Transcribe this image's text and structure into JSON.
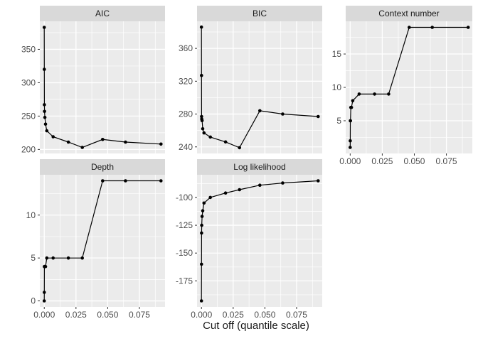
{
  "figure": {
    "xlabel": "Cut off (quantile scale)",
    "background": "#FFFFFF",
    "panel_background": "#EBEBEB",
    "strip_background": "#D9D9D9",
    "gridline_color": "#FFFFFF",
    "line_color": "#000000",
    "point_color": "#000000",
    "tick_mark_color": "#333333",
    "tick_label_color": "#4D4D4D",
    "title_text_color": "#1A1A1A"
  },
  "chart_data": [
    {
      "type": "line",
      "title": "AIC",
      "xlabel": "Cut off (quantile scale)",
      "ylabel": "",
      "x": [
        0,
        5e-05,
        0.0001,
        0.0002,
        0.0005,
        0.001,
        0.002,
        0.007,
        0.019,
        0.03,
        0.046,
        0.064,
        0.092
      ],
      "values": [
        383,
        320,
        267,
        257,
        248,
        238,
        228,
        219,
        211,
        203,
        215,
        211,
        208
      ],
      "xlim": [
        -0.0035,
        0.0952
      ],
      "ylim": [
        194,
        392
      ],
      "xticks": [
        0,
        0.025,
        0.05,
        0.075
      ],
      "xtick_labels": [
        "0.000",
        "0.025",
        "0.050",
        "0.075"
      ],
      "yticks": [
        200,
        250,
        300,
        350
      ],
      "show_x_axis": false,
      "grid": "major+minor",
      "legend": "none"
    },
    {
      "type": "line",
      "title": "BIC",
      "xlabel": "Cut off (quantile scale)",
      "ylabel": "",
      "x": [
        0,
        5e-05,
        0.0001,
        0.0002,
        0.0005,
        0.001,
        0.002,
        0.007,
        0.019,
        0.03,
        0.046,
        0.064,
        0.092
      ],
      "values": [
        386,
        327,
        277,
        274,
        272,
        262,
        257,
        252,
        246,
        239,
        284,
        280,
        277
      ],
      "xlim": [
        -0.0035,
        0.0952
      ],
      "ylim": [
        232,
        393
      ],
      "xticks": [
        0,
        0.025,
        0.05,
        0.075
      ],
      "xtick_labels": [
        "0.000",
        "0.025",
        "0.050",
        "0.075"
      ],
      "yticks": [
        240,
        280,
        320,
        360
      ],
      "show_x_axis": false,
      "grid": "major+minor",
      "legend": "none"
    },
    {
      "type": "line",
      "title": "Context number",
      "xlabel": "Cut off (quantile scale)",
      "ylabel": "",
      "x": [
        0,
        5e-05,
        0.0001,
        0.0002,
        0.0005,
        0.001,
        0.002,
        0.007,
        0.019,
        0.03,
        0.046,
        0.064,
        0.092
      ],
      "values": [
        1,
        2,
        5,
        5,
        7,
        7,
        8,
        9,
        9,
        9,
        19,
        19,
        19
      ],
      "xlim": [
        -0.0035,
        0.0952
      ],
      "ylim": [
        0.1,
        19.9
      ],
      "xticks": [
        0,
        0.025,
        0.05,
        0.075
      ],
      "xtick_labels": [
        "0.000",
        "0.025",
        "0.050",
        "0.075"
      ],
      "yticks": [
        5,
        10,
        15
      ],
      "show_x_axis": true,
      "grid": "major+minor",
      "legend": "none"
    },
    {
      "type": "line",
      "title": "Depth",
      "xlabel": "Cut off (quantile scale)",
      "ylabel": "",
      "x": [
        0,
        5e-05,
        0.0001,
        0.0002,
        0.0005,
        0.001,
        0.002,
        0.007,
        0.019,
        0.03,
        0.046,
        0.064,
        0.092
      ],
      "values": [
        0,
        1,
        4,
        4,
        4,
        4,
        5,
        5,
        5,
        5,
        14,
        14,
        14
      ],
      "xlim": [
        -0.0035,
        0.0952
      ],
      "ylim": [
        -0.7,
        14.7
      ],
      "xticks": [
        0,
        0.025,
        0.05,
        0.075
      ],
      "xtick_labels": [
        "0.000",
        "0.025",
        "0.050",
        "0.075"
      ],
      "yticks": [
        0,
        5,
        10
      ],
      "show_x_axis": true,
      "grid": "major+minor",
      "legend": "none"
    },
    {
      "type": "line",
      "title": "Log likelihood",
      "xlabel": "Cut off (quantile scale)",
      "ylabel": "",
      "x": [
        0,
        5e-05,
        0.0001,
        0.0002,
        0.0005,
        0.001,
        0.002,
        0.007,
        0.019,
        0.03,
        0.046,
        0.064,
        0.092
      ],
      "values": [
        -193,
        -160,
        -132,
        -125,
        -117,
        -112,
        -105,
        -100,
        -96,
        -93,
        -89,
        -87,
        -85
      ],
      "xlim": [
        -0.0035,
        0.0952
      ],
      "ylim": [
        -198.4,
        -79.6
      ],
      "xticks": [
        0,
        0.025,
        0.05,
        0.075
      ],
      "xtick_labels": [
        "0.000",
        "0.025",
        "0.050",
        "0.075"
      ],
      "yticks": [
        -175,
        -150,
        -125,
        -100
      ],
      "show_x_axis": true,
      "grid": "major+minor",
      "legend": "none"
    }
  ]
}
